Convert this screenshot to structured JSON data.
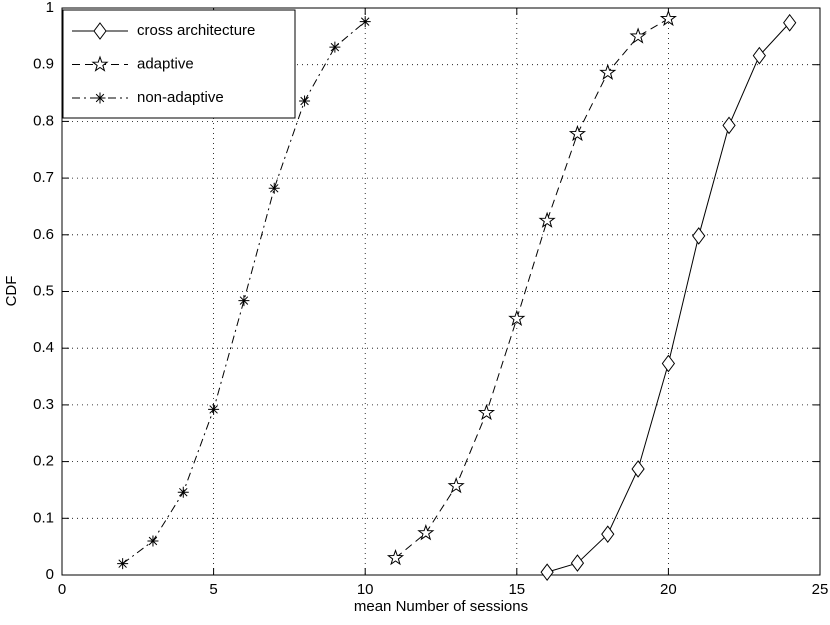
{
  "chart_data": {
    "type": "line",
    "xlabel": "mean Number of sessions",
    "ylabel": "CDF",
    "xlim": [
      0,
      25
    ],
    "xticks": [
      0,
      5,
      10,
      15,
      20,
      25
    ],
    "ylim": [
      0,
      1
    ],
    "yticks": [
      0,
      0.1,
      0.2,
      0.3,
      0.4,
      0.5,
      0.6,
      0.7,
      0.8,
      0.9,
      1
    ],
    "grid": true,
    "legend_position": "upper left",
    "series": [
      {
        "name": "cross architecture",
        "color": "#000000",
        "marker": "diamond",
        "linestyle": "solid",
        "x": [
          16,
          17,
          18,
          19,
          20,
          21,
          22,
          23,
          24
        ],
        "values": [
          0.005,
          0.021,
          0.072,
          0.187,
          0.373,
          0.598,
          0.793,
          0.916,
          0.974
        ]
      },
      {
        "name": "adaptive",
        "color": "#000000",
        "marker": "star",
        "linestyle": "dashed",
        "x": [
          11,
          12,
          13,
          14,
          15,
          16,
          17,
          18,
          19,
          20
        ],
        "values": [
          0.03,
          0.074,
          0.157,
          0.286,
          0.452,
          0.625,
          0.778,
          0.886,
          0.95,
          0.981
        ]
      },
      {
        "name": "non-adaptive",
        "color": "#000000",
        "marker": "asterisk",
        "linestyle": "dashdot",
        "x": [
          2,
          3,
          4,
          5,
          6,
          7,
          8,
          9,
          10
        ],
        "values": [
          0.02,
          0.06,
          0.146,
          0.292,
          0.484,
          0.682,
          0.836,
          0.931,
          0.976
        ]
      }
    ]
  }
}
